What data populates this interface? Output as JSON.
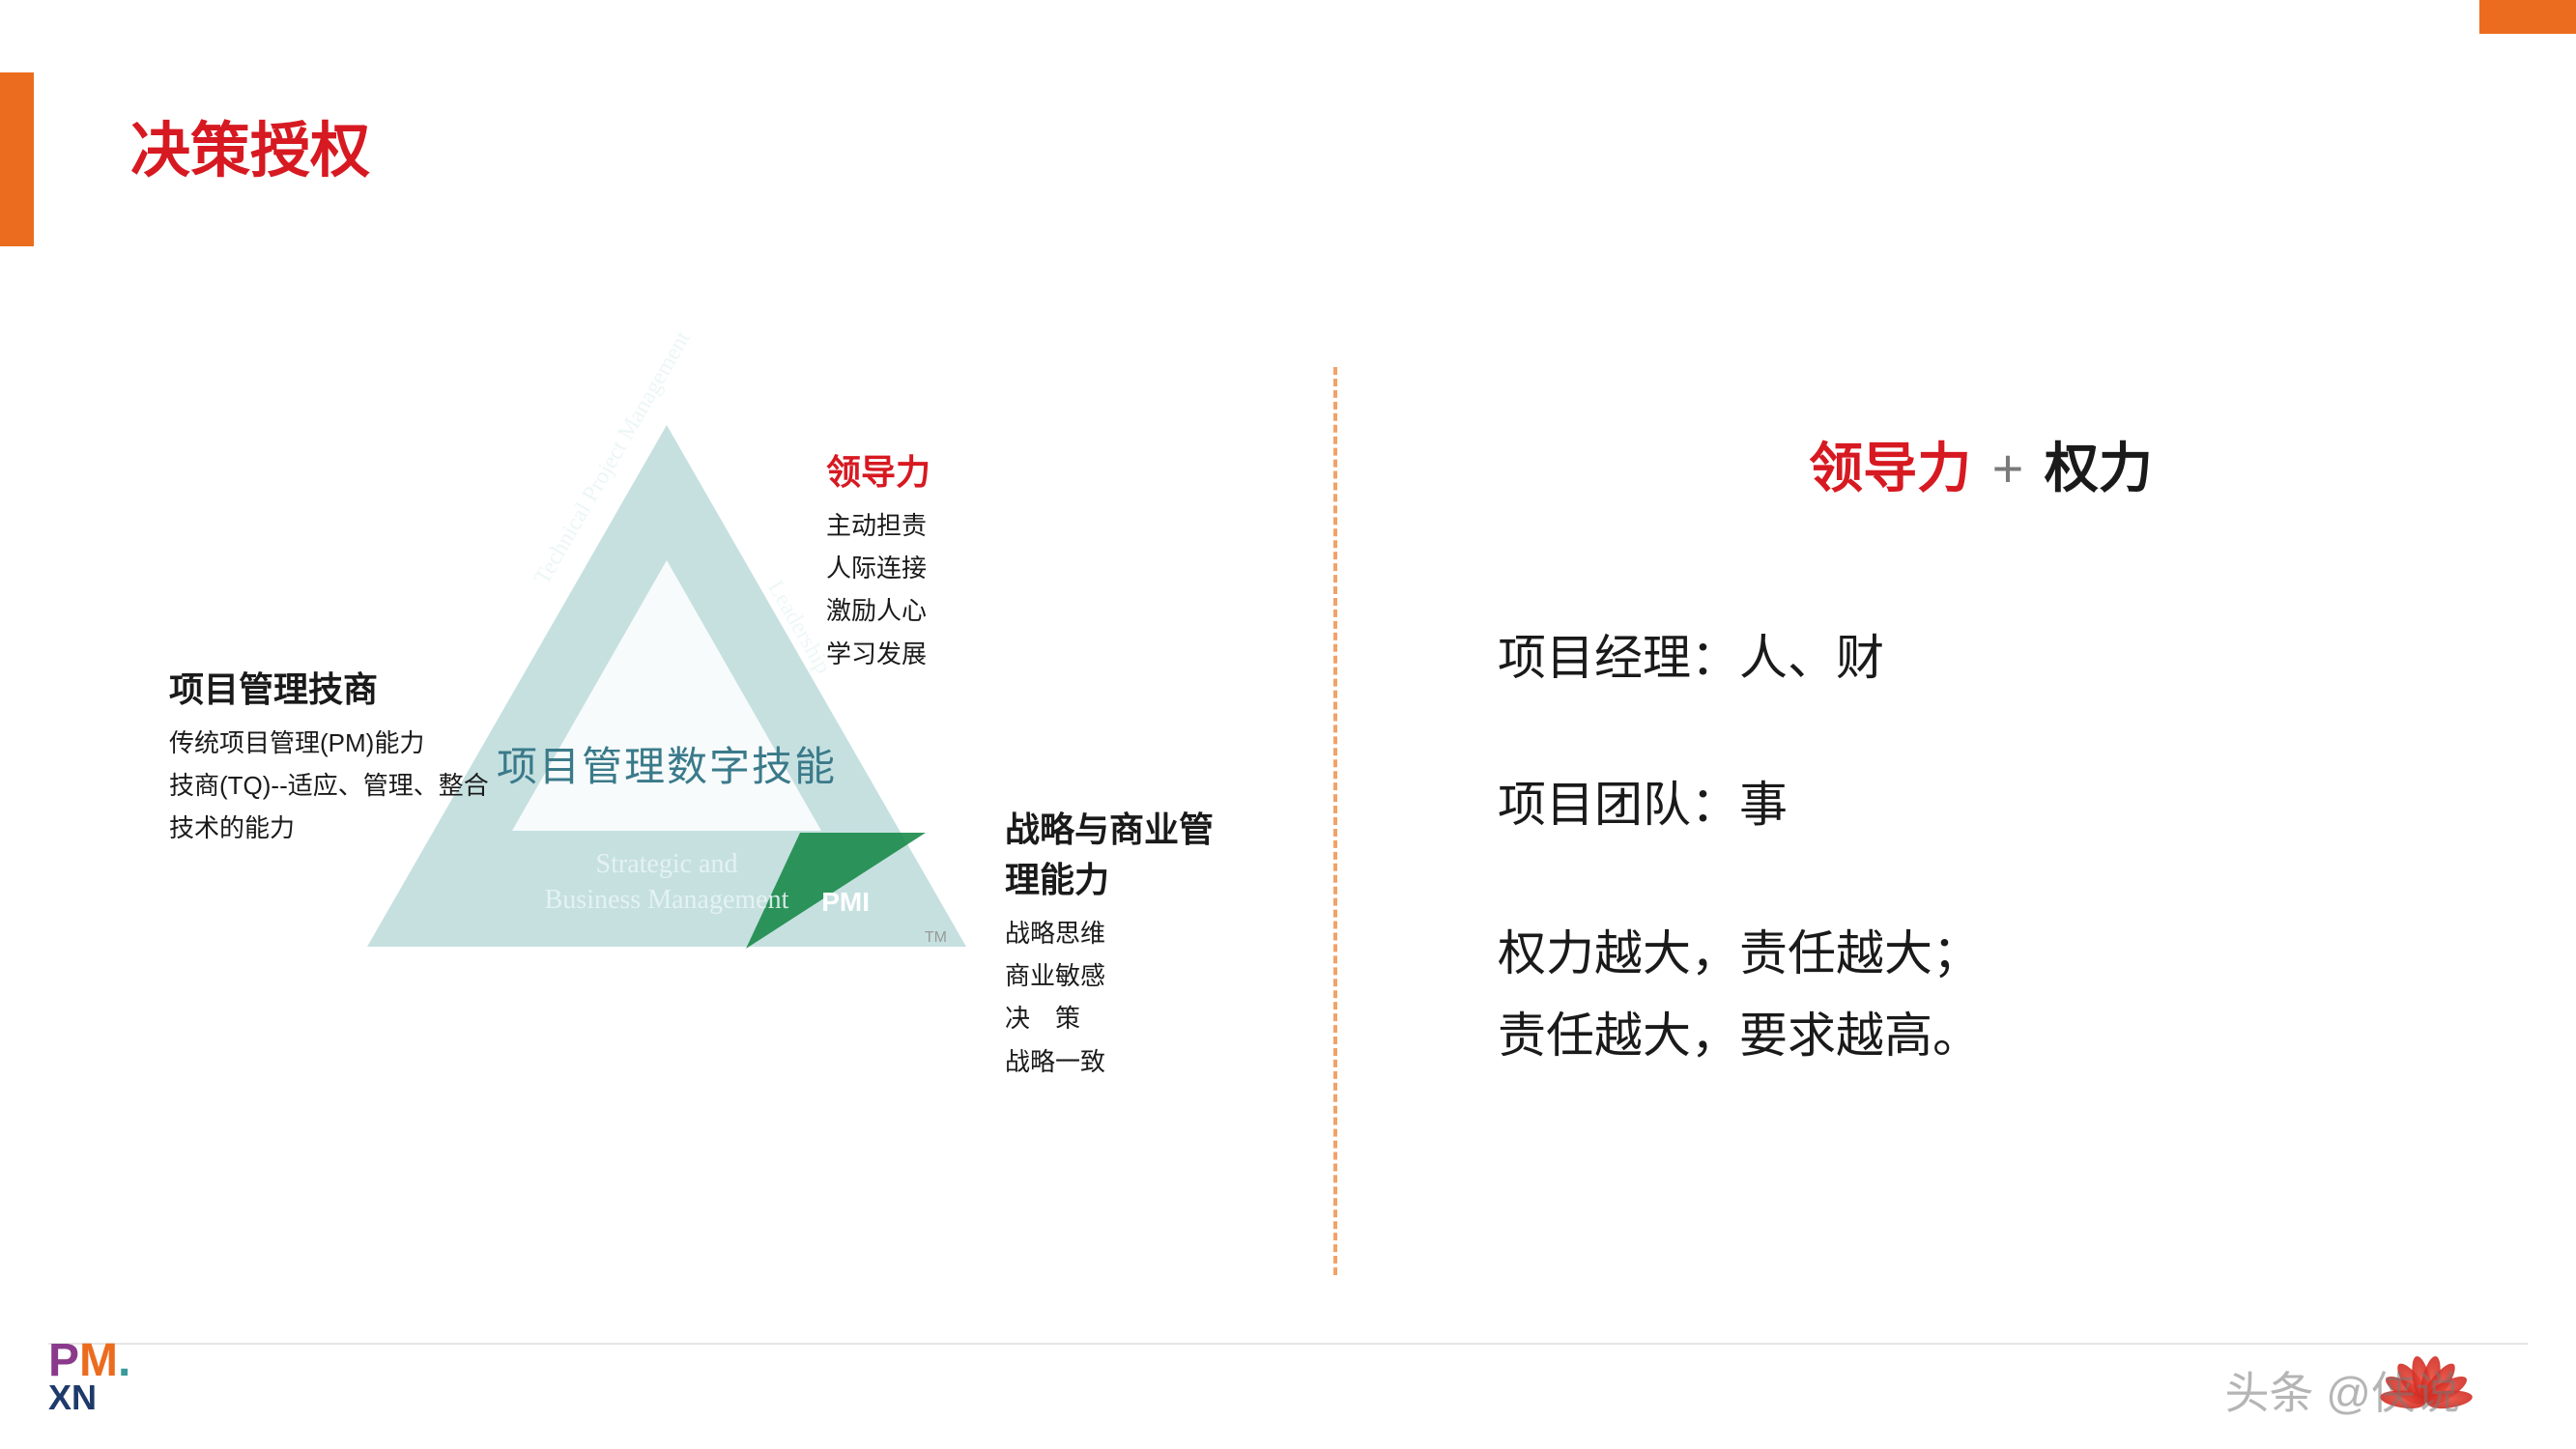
{
  "colors": {
    "accent_orange": "#ec6c1f",
    "title_red": "#d71921",
    "text_black": "#1a1a1a",
    "triangle_teal": "#b8d8d8",
    "triangle_green": "#1a8b4a",
    "triangle_text": "#3a7a8a",
    "divider": "#f2a267",
    "footer_line": "#e6e6e6",
    "plus_gray": "#7a7a7a"
  },
  "title": "决策授权",
  "triangle": {
    "center_text": "项目管理数字技能",
    "left_side_text": "Technical Project Management",
    "right_side_text": "Leadership",
    "bottom_line1": "Strategic and",
    "bottom_line2": "Business Management",
    "pmi_logo_text": "PMI",
    "tm": "TM",
    "clusters": {
      "top": {
        "title": "领导力",
        "title_color": "red",
        "items": [
          "主动担责",
          "人际连接",
          "激励人心",
          "学习发展"
        ]
      },
      "left": {
        "title": "项目管理技商",
        "title_color": "black",
        "items": [
          "传统项目管理(PM)能力",
          "技商(TQ)--适应、管理、整合",
          "技术的能力"
        ]
      },
      "right": {
        "title": "战略与商业管理能力",
        "title_color": "black",
        "items": [
          "战略思维",
          "商业敏感",
          "决　策",
          "战略一致"
        ]
      }
    }
  },
  "right_panel": {
    "heading_red": "领导力",
    "heading_plus": " + ",
    "heading_black": "权力",
    "line1": "项目经理：人、财",
    "line2": "项目团队：事",
    "block_line1": "权力越大，责任越大；",
    "block_line2": "责任越大，要求越高。"
  },
  "footer": {
    "pmi_p": "P",
    "pmi_m": "M",
    "pmi_dot": ".",
    "pmi_sub": "XN",
    "watermark": "头条 @侠说"
  }
}
